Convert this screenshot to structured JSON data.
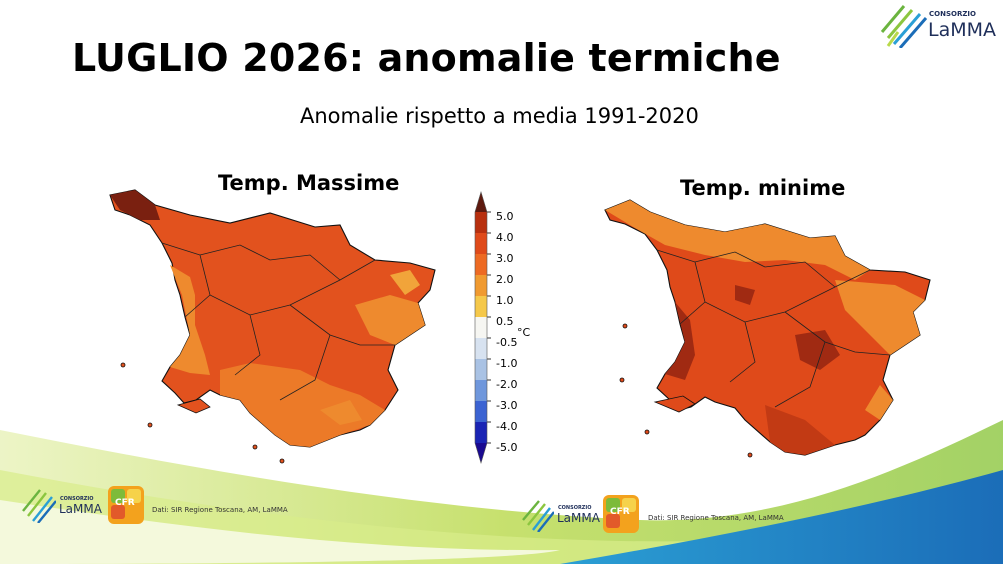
{
  "title": "LUGLIO 2026: anomalie termiche",
  "subtitle": "Anomalie rispetto a media 1991-2020",
  "maps": [
    {
      "title": "Temp. Massime"
    },
    {
      "title": "Temp. minime"
    }
  ],
  "colorbar": {
    "unit": "°C",
    "ticks": [
      "5.0",
      "4.0",
      "3.0",
      "2.0",
      "1.0",
      "0.5",
      "-0.5",
      "-1.0",
      "-2.0",
      "-3.0",
      "-4.0",
      "-5.0"
    ],
    "colors": [
      "#5e1a0f",
      "#b8300f",
      "#df4a1a",
      "#ed6a23",
      "#f09a30",
      "#f5c84a",
      "#f6f6f2",
      "#d7e2f0",
      "#a9c2e4",
      "#6f97dc",
      "#3b63d2",
      "#1a24b4",
      "#1a0a90"
    ]
  },
  "logos": {
    "top_right": {
      "small": "CONSORZIO",
      "big": "LaMMA"
    },
    "bottom_left": {
      "small": "CONSORZIO",
      "big": "LaMMA",
      "badge": "CFR"
    },
    "bottom_right": {
      "small": "CONSORZIO",
      "big": "LaMMA",
      "badge": "CFR"
    }
  },
  "credits": {
    "left": "Dati: SIR Regione Toscana, AM, LaMMA",
    "right": "Dati: SIR Regione Toscana, AM, LaMMA"
  },
  "colors": {
    "swoosh_green": "#a8cf3a",
    "swoosh_blue": "#2aa4d6",
    "map_main": "#e2521e",
    "map_light": "#ee8a2e",
    "map_dark": "#c23a14"
  }
}
